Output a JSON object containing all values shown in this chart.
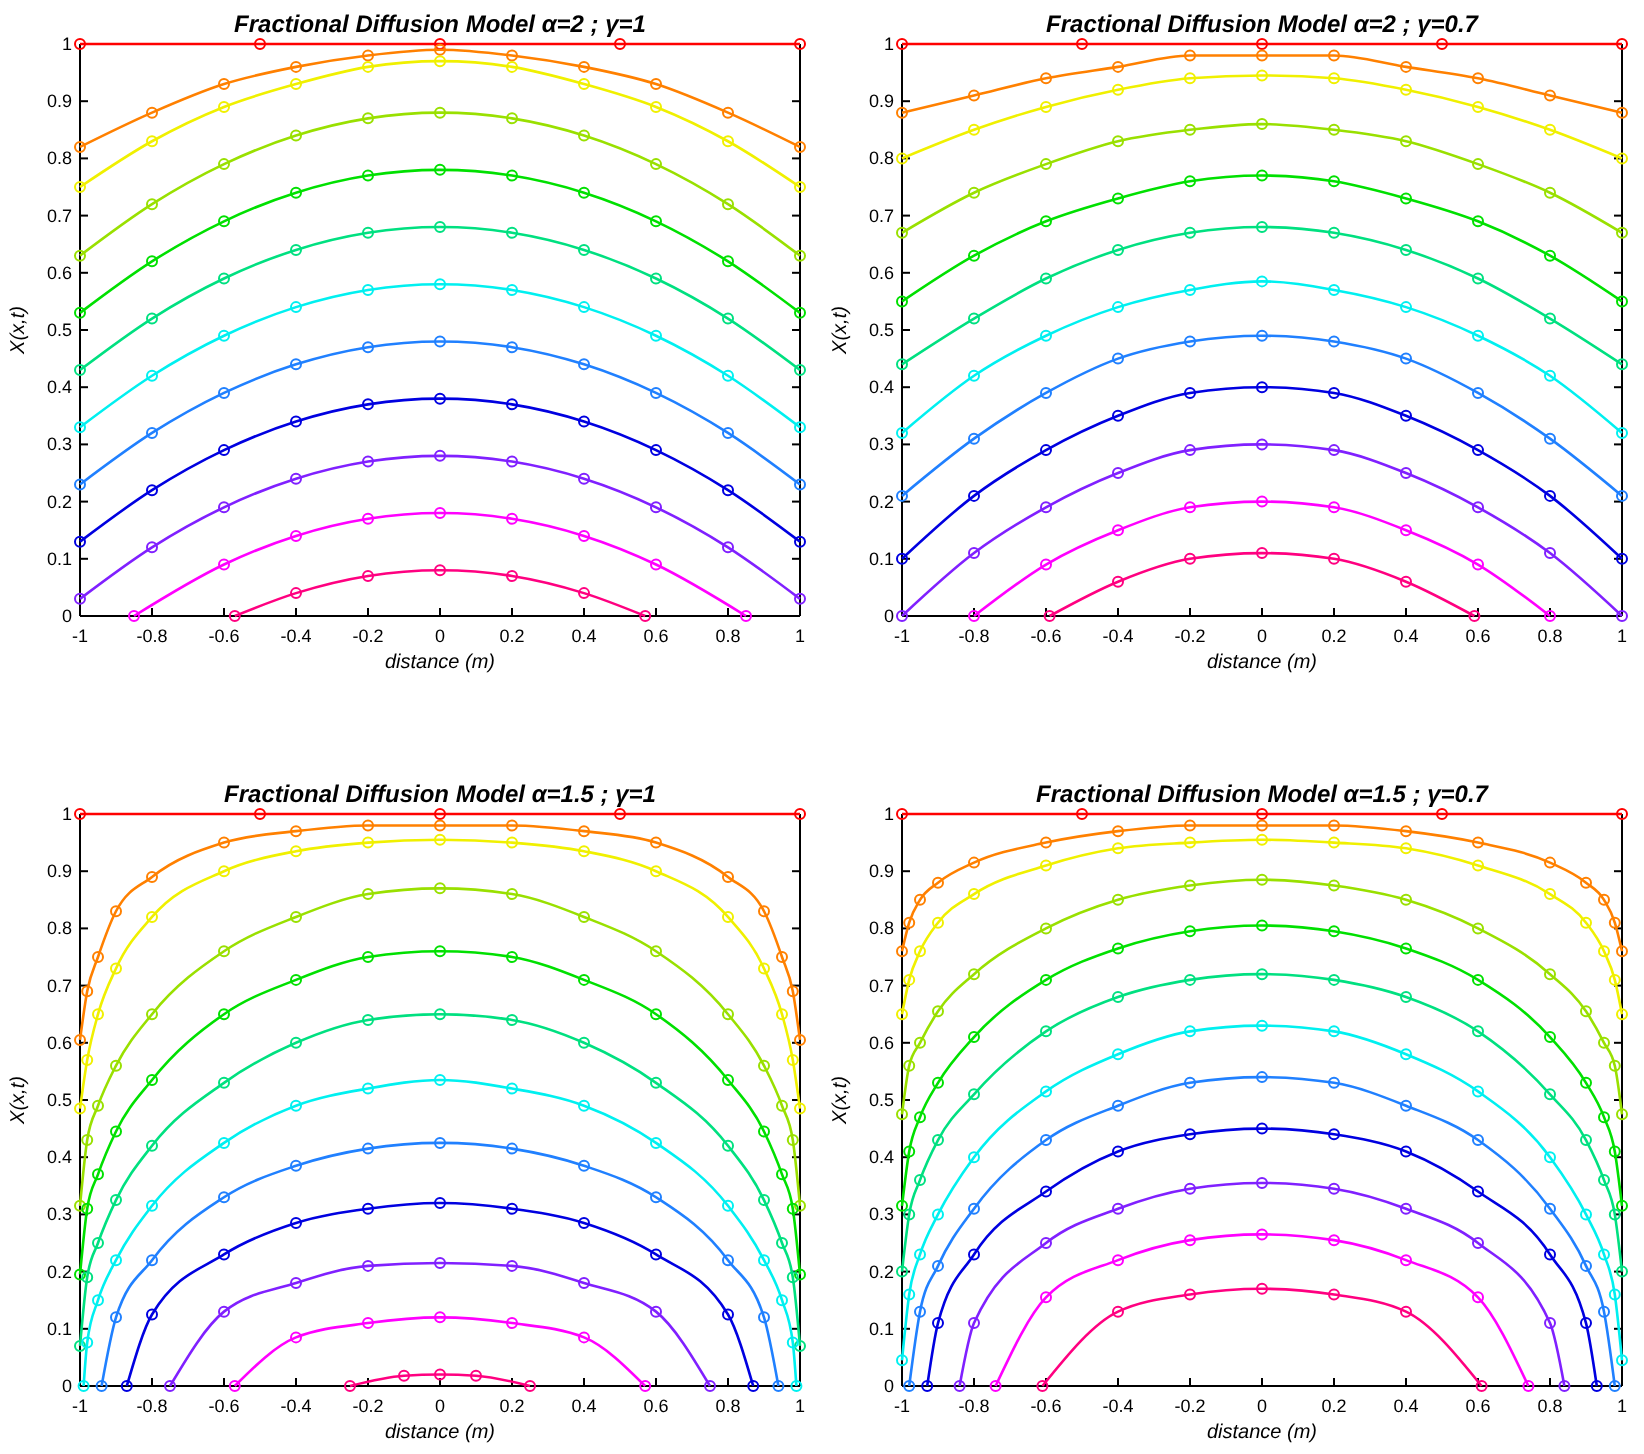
{
  "chart_data": [
    {
      "type": "line",
      "title": "Fractional Diffusion Model α=2 ; γ=1",
      "xlabel": "distance (m)",
      "ylabel": "X(x,t)",
      "xlim": [
        -1,
        1
      ],
      "ylim": [
        0,
        1
      ],
      "xticks": [
        -1,
        -0.8,
        -0.6,
        -0.4,
        -0.2,
        0,
        0.2,
        0.4,
        0.6,
        0.8,
        1
      ],
      "yticks": [
        0,
        0.1,
        0.2,
        0.3,
        0.4,
        0.5,
        0.6,
        0.7,
        0.8,
        0.9,
        1
      ],
      "marker": "circle",
      "line_style": "solid",
      "series": [
        {
          "color": "#ff0000",
          "x": [
            -1,
            -0.5,
            0,
            0.5,
            1
          ],
          "values": [
            1,
            1,
            1,
            1,
            1
          ]
        },
        {
          "color": "#ff8000",
          "x": [
            -1,
            -0.8,
            -0.6,
            -0.4,
            -0.2,
            0,
            0.2,
            0.4,
            0.6,
            0.8,
            1
          ],
          "values": [
            0.82,
            0.88,
            0.93,
            0.96,
            0.98,
            0.99,
            0.98,
            0.96,
            0.93,
            0.88,
            0.82
          ]
        },
        {
          "color": "#f0f000",
          "x": [
            -1,
            -0.8,
            -0.6,
            -0.4,
            -0.2,
            0,
            0.2,
            0.4,
            0.6,
            0.8,
            1
          ],
          "values": [
            0.75,
            0.83,
            0.89,
            0.93,
            0.96,
            0.97,
            0.96,
            0.93,
            0.89,
            0.83,
            0.75
          ]
        },
        {
          "color": "#99e000",
          "x": [
            -1,
            -0.8,
            -0.6,
            -0.4,
            -0.2,
            0,
            0.2,
            0.4,
            0.6,
            0.8,
            1
          ],
          "values": [
            0.63,
            0.72,
            0.79,
            0.84,
            0.87,
            0.88,
            0.87,
            0.84,
            0.79,
            0.72,
            0.63
          ]
        },
        {
          "color": "#00e000",
          "x": [
            -1,
            -0.8,
            -0.6,
            -0.4,
            -0.2,
            0,
            0.2,
            0.4,
            0.6,
            0.8,
            1
          ],
          "values": [
            0.53,
            0.62,
            0.69,
            0.74,
            0.77,
            0.78,
            0.77,
            0.74,
            0.69,
            0.62,
            0.53
          ]
        },
        {
          "color": "#00e080",
          "x": [
            -1,
            -0.8,
            -0.6,
            -0.4,
            -0.2,
            0,
            0.2,
            0.4,
            0.6,
            0.8,
            1
          ],
          "values": [
            0.43,
            0.52,
            0.59,
            0.64,
            0.67,
            0.68,
            0.67,
            0.64,
            0.59,
            0.52,
            0.43
          ]
        },
        {
          "color": "#00f0f0",
          "x": [
            -1,
            -0.8,
            -0.6,
            -0.4,
            -0.2,
            0,
            0.2,
            0.4,
            0.6,
            0.8,
            1
          ],
          "values": [
            0.33,
            0.42,
            0.49,
            0.54,
            0.57,
            0.58,
            0.57,
            0.54,
            0.49,
            0.42,
            0.33
          ]
        },
        {
          "color": "#2080ff",
          "x": [
            -1,
            -0.8,
            -0.6,
            -0.4,
            -0.2,
            0,
            0.2,
            0.4,
            0.6,
            0.8,
            1
          ],
          "values": [
            0.23,
            0.32,
            0.39,
            0.44,
            0.47,
            0.48,
            0.47,
            0.44,
            0.39,
            0.32,
            0.23
          ]
        },
        {
          "color": "#0000e0",
          "x": [
            -1,
            -0.8,
            -0.6,
            -0.4,
            -0.2,
            0,
            0.2,
            0.4,
            0.6,
            0.8,
            1
          ],
          "values": [
            0.13,
            0.22,
            0.29,
            0.34,
            0.37,
            0.38,
            0.37,
            0.34,
            0.29,
            0.22,
            0.13
          ]
        },
        {
          "color": "#8020ff",
          "x": [
            -1,
            -0.8,
            -0.6,
            -0.4,
            -0.2,
            0,
            0.2,
            0.4,
            0.6,
            0.8,
            1
          ],
          "values": [
            0.03,
            0.12,
            0.19,
            0.24,
            0.27,
            0.28,
            0.27,
            0.24,
            0.19,
            0.12,
            0.03
          ]
        },
        {
          "color": "#ff00ff",
          "x": [
            -0.85,
            -0.6,
            -0.4,
            -0.2,
            0,
            0.2,
            0.4,
            0.6,
            0.85
          ],
          "values": [
            0,
            0.09,
            0.14,
            0.17,
            0.18,
            0.17,
            0.14,
            0.09,
            0
          ]
        },
        {
          "color": "#ff0080",
          "x": [
            -0.57,
            -0.4,
            -0.2,
            0,
            0.2,
            0.4,
            0.57
          ],
          "values": [
            0,
            0.04,
            0.07,
            0.08,
            0.07,
            0.04,
            0
          ]
        }
      ]
    },
    {
      "type": "line",
      "title": "Fractional Diffusion Model α=2 ; γ=0.7",
      "xlabel": "distance (m)",
      "ylabel": "X(x,t)",
      "xlim": [
        -1,
        1
      ],
      "ylim": [
        0,
        1
      ],
      "xticks": [
        -1,
        -0.8,
        -0.6,
        -0.4,
        -0.2,
        0,
        0.2,
        0.4,
        0.6,
        0.8,
        1
      ],
      "yticks": [
        0,
        0.1,
        0.2,
        0.3,
        0.4,
        0.5,
        0.6,
        0.7,
        0.8,
        0.9,
        1
      ],
      "marker": "circle",
      "line_style": "solid",
      "series": [
        {
          "color": "#ff0000",
          "x": [
            -1,
            -0.5,
            0,
            0.5,
            1
          ],
          "values": [
            1,
            1,
            1,
            1,
            1
          ]
        },
        {
          "color": "#ff8000",
          "x": [
            -1,
            -0.8,
            -0.6,
            -0.4,
            -0.2,
            0,
            0.2,
            0.4,
            0.6,
            0.8,
            1
          ],
          "values": [
            0.88,
            0.91,
            0.94,
            0.96,
            0.98,
            0.98,
            0.98,
            0.96,
            0.94,
            0.91,
            0.88
          ]
        },
        {
          "color": "#f0f000",
          "x": [
            -1,
            -0.8,
            -0.6,
            -0.4,
            -0.2,
            0,
            0.2,
            0.4,
            0.6,
            0.8,
            1
          ],
          "values": [
            0.8,
            0.85,
            0.89,
            0.92,
            0.94,
            0.945,
            0.94,
            0.92,
            0.89,
            0.85,
            0.8
          ]
        },
        {
          "color": "#99e000",
          "x": [
            -1,
            -0.8,
            -0.6,
            -0.4,
            -0.2,
            0,
            0.2,
            0.4,
            0.6,
            0.8,
            1
          ],
          "values": [
            0.67,
            0.74,
            0.79,
            0.83,
            0.85,
            0.86,
            0.85,
            0.83,
            0.79,
            0.74,
            0.67
          ]
        },
        {
          "color": "#00e000",
          "x": [
            -1,
            -0.8,
            -0.6,
            -0.4,
            -0.2,
            0,
            0.2,
            0.4,
            0.6,
            0.8,
            1
          ],
          "values": [
            0.55,
            0.63,
            0.69,
            0.73,
            0.76,
            0.77,
            0.76,
            0.73,
            0.69,
            0.63,
            0.55
          ]
        },
        {
          "color": "#00e080",
          "x": [
            -1,
            -0.8,
            -0.6,
            -0.4,
            -0.2,
            0,
            0.2,
            0.4,
            0.6,
            0.8,
            1
          ],
          "values": [
            0.44,
            0.52,
            0.59,
            0.64,
            0.67,
            0.68,
            0.67,
            0.64,
            0.59,
            0.52,
            0.44
          ]
        },
        {
          "color": "#00f0f0",
          "x": [
            -1,
            -0.8,
            -0.6,
            -0.4,
            -0.2,
            0,
            0.2,
            0.4,
            0.6,
            0.8,
            1
          ],
          "values": [
            0.32,
            0.42,
            0.49,
            0.54,
            0.57,
            0.585,
            0.57,
            0.54,
            0.49,
            0.42,
            0.32
          ]
        },
        {
          "color": "#2080ff",
          "x": [
            -1,
            -0.8,
            -0.6,
            -0.4,
            -0.2,
            0,
            0.2,
            0.4,
            0.6,
            0.8,
            1
          ],
          "values": [
            0.21,
            0.31,
            0.39,
            0.45,
            0.48,
            0.49,
            0.48,
            0.45,
            0.39,
            0.31,
            0.21
          ]
        },
        {
          "color": "#0000e0",
          "x": [
            -1,
            -0.8,
            -0.6,
            -0.4,
            -0.2,
            0,
            0.2,
            0.4,
            0.6,
            0.8,
            1
          ],
          "values": [
            0.1,
            0.21,
            0.29,
            0.35,
            0.39,
            0.4,
            0.39,
            0.35,
            0.29,
            0.21,
            0.1
          ]
        },
        {
          "color": "#8020ff",
          "x": [
            -1,
            -0.8,
            -0.6,
            -0.4,
            -0.2,
            0,
            0.2,
            0.4,
            0.6,
            0.8,
            1
          ],
          "values": [
            0,
            0.11,
            0.19,
            0.25,
            0.29,
            0.3,
            0.29,
            0.25,
            0.19,
            0.11,
            0
          ]
        },
        {
          "color": "#ff00ff",
          "x": [
            -0.8,
            -0.6,
            -0.4,
            -0.2,
            0,
            0.2,
            0.4,
            0.6,
            0.8
          ],
          "values": [
            0,
            0.09,
            0.15,
            0.19,
            0.2,
            0.19,
            0.15,
            0.09,
            0
          ]
        },
        {
          "color": "#ff0080",
          "x": [
            -0.59,
            -0.4,
            -0.2,
            0,
            0.2,
            0.4,
            0.59
          ],
          "values": [
            0,
            0.06,
            0.1,
            0.11,
            0.1,
            0.06,
            0
          ]
        }
      ]
    },
    {
      "type": "line",
      "title": "Fractional Diffusion Model α=1.5 ; γ=1",
      "xlabel": "distance (m)",
      "ylabel": "X(x,t)",
      "xlim": [
        -1,
        1
      ],
      "ylim": [
        0,
        1
      ],
      "xticks": [
        -1,
        -0.8,
        -0.6,
        -0.4,
        -0.2,
        0,
        0.2,
        0.4,
        0.6,
        0.8,
        1
      ],
      "yticks": [
        0,
        0.1,
        0.2,
        0.3,
        0.4,
        0.5,
        0.6,
        0.7,
        0.8,
        0.9,
        1
      ],
      "marker": "circle",
      "line_style": "solid",
      "series": [
        {
          "color": "#ff0000",
          "x": [
            -1,
            -0.5,
            0,
            0.5,
            1
          ],
          "values": [
            1,
            1,
            1,
            1,
            1
          ]
        },
        {
          "color": "#ff8000",
          "x": [
            -1,
            -0.98,
            -0.95,
            -0.9,
            -0.8,
            -0.6,
            -0.4,
            -0.2,
            0,
            0.2,
            0.4,
            0.6,
            0.8,
            0.9,
            0.95,
            0.98,
            1
          ],
          "values": [
            0.605,
            0.69,
            0.75,
            0.83,
            0.89,
            0.95,
            0.97,
            0.98,
            0.98,
            0.98,
            0.97,
            0.95,
            0.89,
            0.83,
            0.75,
            0.69,
            0.605
          ]
        },
        {
          "color": "#f0f000",
          "x": [
            -1,
            -0.98,
            -0.95,
            -0.9,
            -0.8,
            -0.6,
            -0.4,
            -0.2,
            0,
            0.2,
            0.4,
            0.6,
            0.8,
            0.9,
            0.95,
            0.98,
            1
          ],
          "values": [
            0.485,
            0.57,
            0.65,
            0.73,
            0.82,
            0.9,
            0.935,
            0.95,
            0.955,
            0.95,
            0.935,
            0.9,
            0.82,
            0.73,
            0.65,
            0.57,
            0.485
          ]
        },
        {
          "color": "#99e000",
          "x": [
            -1,
            -0.98,
            -0.95,
            -0.9,
            -0.8,
            -0.6,
            -0.4,
            -0.2,
            0,
            0.2,
            0.4,
            0.6,
            0.8,
            0.9,
            0.95,
            0.98,
            1
          ],
          "values": [
            0.315,
            0.43,
            0.49,
            0.56,
            0.65,
            0.76,
            0.82,
            0.86,
            0.87,
            0.86,
            0.82,
            0.76,
            0.65,
            0.56,
            0.49,
            0.43,
            0.315
          ]
        },
        {
          "color": "#00e000",
          "x": [
            -1,
            -0.98,
            -0.95,
            -0.9,
            -0.8,
            -0.6,
            -0.4,
            -0.2,
            0,
            0.2,
            0.4,
            0.6,
            0.8,
            0.9,
            0.95,
            0.98,
            1
          ],
          "values": [
            0.195,
            0.31,
            0.37,
            0.445,
            0.535,
            0.65,
            0.71,
            0.75,
            0.76,
            0.75,
            0.71,
            0.65,
            0.535,
            0.445,
            0.37,
            0.31,
            0.195
          ]
        },
        {
          "color": "#00e080",
          "x": [
            -1,
            -0.98,
            -0.95,
            -0.9,
            -0.8,
            -0.6,
            -0.4,
            -0.2,
            0,
            0.2,
            0.4,
            0.6,
            0.8,
            0.9,
            0.95,
            0.98,
            1
          ],
          "values": [
            0.07,
            0.19,
            0.25,
            0.325,
            0.42,
            0.53,
            0.6,
            0.64,
            0.65,
            0.64,
            0.6,
            0.53,
            0.42,
            0.325,
            0.25,
            0.19,
            0.07
          ]
        },
        {
          "color": "#00f0f0",
          "x": [
            -0.99,
            -0.98,
            -0.95,
            -0.9,
            -0.8,
            -0.6,
            -0.4,
            -0.2,
            0,
            0.2,
            0.4,
            0.6,
            0.8,
            0.9,
            0.95,
            0.98,
            0.99
          ],
          "values": [
            0,
            0.076,
            0.15,
            0.22,
            0.315,
            0.425,
            0.49,
            0.52,
            0.535,
            0.52,
            0.49,
            0.425,
            0.315,
            0.22,
            0.15,
            0.076,
            0
          ]
        },
        {
          "color": "#2080ff",
          "x": [
            -0.94,
            -0.9,
            -0.8,
            -0.6,
            -0.4,
            -0.2,
            0,
            0.2,
            0.4,
            0.6,
            0.8,
            0.9,
            0.94
          ],
          "values": [
            0,
            0.12,
            0.22,
            0.33,
            0.385,
            0.415,
            0.425,
            0.415,
            0.385,
            0.33,
            0.22,
            0.12,
            0
          ]
        },
        {
          "color": "#0000e0",
          "x": [
            -0.87,
            -0.8,
            -0.6,
            -0.4,
            -0.2,
            0,
            0.2,
            0.4,
            0.6,
            0.8,
            0.87
          ],
          "values": [
            0,
            0.125,
            0.23,
            0.285,
            0.31,
            0.32,
            0.31,
            0.285,
            0.23,
            0.125,
            0
          ]
        },
        {
          "color": "#8020ff",
          "x": [
            -0.75,
            -0.6,
            -0.4,
            -0.2,
            0,
            0.2,
            0.4,
            0.6,
            0.75
          ],
          "values": [
            0,
            0.13,
            0.18,
            0.21,
            0.215,
            0.21,
            0.18,
            0.13,
            0
          ]
        },
        {
          "color": "#ff00ff",
          "x": [
            -0.57,
            -0.4,
            -0.2,
            0,
            0.2,
            0.4,
            0.57
          ],
          "values": [
            0,
            0.085,
            0.11,
            0.12,
            0.11,
            0.085,
            0
          ]
        },
        {
          "color": "#ff0080",
          "x": [
            -0.25,
            -0.1,
            0,
            0.1,
            0.25
          ],
          "values": [
            0,
            0.018,
            0.02,
            0.018,
            0
          ]
        }
      ]
    },
    {
      "type": "line",
      "title": "Fractional Diffusion Model α=1.5 ; γ=0.7",
      "xlabel": "distance (m)",
      "ylabel": "X(x,t)",
      "xlim": [
        -1,
        1
      ],
      "ylim": [
        0,
        1
      ],
      "xticks": [
        -1,
        -0.8,
        -0.6,
        -0.4,
        -0.2,
        0,
        0.2,
        0.4,
        0.6,
        0.8,
        1
      ],
      "yticks": [
        0,
        0.1,
        0.2,
        0.3,
        0.4,
        0.5,
        0.6,
        0.7,
        0.8,
        0.9,
        1
      ],
      "marker": "circle",
      "line_style": "solid",
      "series": [
        {
          "color": "#ff0000",
          "x": [
            -1,
            -0.5,
            0,
            0.5,
            1
          ],
          "values": [
            1,
            1,
            1,
            1,
            1
          ]
        },
        {
          "color": "#ff8000",
          "x": [
            -1,
            -0.98,
            -0.95,
            -0.9,
            -0.8,
            -0.6,
            -0.4,
            -0.2,
            0,
            0.2,
            0.4,
            0.6,
            0.8,
            0.9,
            0.95,
            0.98,
            1
          ],
          "values": [
            0.76,
            0.81,
            0.85,
            0.88,
            0.915,
            0.95,
            0.97,
            0.98,
            0.98,
            0.98,
            0.97,
            0.95,
            0.915,
            0.88,
            0.85,
            0.81,
            0.76
          ]
        },
        {
          "color": "#f0f000",
          "x": [
            -1,
            -0.98,
            -0.95,
            -0.9,
            -0.8,
            -0.6,
            -0.4,
            -0.2,
            0,
            0.2,
            0.4,
            0.6,
            0.8,
            0.9,
            0.95,
            0.98,
            1
          ],
          "values": [
            0.65,
            0.71,
            0.76,
            0.81,
            0.86,
            0.91,
            0.94,
            0.95,
            0.955,
            0.95,
            0.94,
            0.91,
            0.86,
            0.81,
            0.76,
            0.71,
            0.65
          ]
        },
        {
          "color": "#99e000",
          "x": [
            -1,
            -0.98,
            -0.95,
            -0.9,
            -0.8,
            -0.6,
            -0.4,
            -0.2,
            0,
            0.2,
            0.4,
            0.6,
            0.8,
            0.9,
            0.95,
            0.98,
            1
          ],
          "values": [
            0.475,
            0.56,
            0.6,
            0.655,
            0.72,
            0.8,
            0.85,
            0.875,
            0.885,
            0.875,
            0.85,
            0.8,
            0.72,
            0.655,
            0.6,
            0.56,
            0.475
          ]
        },
        {
          "color": "#00e000",
          "x": [
            -1,
            -0.98,
            -0.95,
            -0.9,
            -0.8,
            -0.6,
            -0.4,
            -0.2,
            0,
            0.2,
            0.4,
            0.6,
            0.8,
            0.9,
            0.95,
            0.98,
            1
          ],
          "values": [
            0.315,
            0.41,
            0.47,
            0.53,
            0.61,
            0.71,
            0.765,
            0.795,
            0.805,
            0.795,
            0.765,
            0.71,
            0.61,
            0.53,
            0.47,
            0.41,
            0.315
          ]
        },
        {
          "color": "#00e080",
          "x": [
            -1,
            -0.98,
            -0.95,
            -0.9,
            -0.8,
            -0.6,
            -0.4,
            -0.2,
            0,
            0.2,
            0.4,
            0.6,
            0.8,
            0.9,
            0.95,
            0.98,
            1
          ],
          "values": [
            0.2,
            0.3,
            0.36,
            0.43,
            0.51,
            0.62,
            0.68,
            0.71,
            0.72,
            0.71,
            0.68,
            0.62,
            0.51,
            0.43,
            0.36,
            0.3,
            0.2
          ]
        },
        {
          "color": "#00f0f0",
          "x": [
            -1,
            -0.98,
            -0.95,
            -0.9,
            -0.8,
            -0.6,
            -0.4,
            -0.2,
            0,
            0.2,
            0.4,
            0.6,
            0.8,
            0.9,
            0.95,
            0.98,
            1
          ],
          "values": [
            0.045,
            0.16,
            0.23,
            0.3,
            0.4,
            0.515,
            0.58,
            0.62,
            0.63,
            0.62,
            0.58,
            0.515,
            0.4,
            0.3,
            0.23,
            0.16,
            0.045
          ]
        },
        {
          "color": "#2080ff",
          "x": [
            -0.98,
            -0.95,
            -0.9,
            -0.8,
            -0.6,
            -0.4,
            -0.2,
            0,
            0.2,
            0.4,
            0.6,
            0.8,
            0.9,
            0.95,
            0.98
          ],
          "values": [
            0,
            0.13,
            0.21,
            0.31,
            0.43,
            0.49,
            0.53,
            0.54,
            0.53,
            0.49,
            0.43,
            0.31,
            0.21,
            0.13,
            0
          ]
        },
        {
          "color": "#0000e0",
          "x": [
            -0.93,
            -0.9,
            -0.8,
            -0.6,
            -0.4,
            -0.2,
            0,
            0.2,
            0.4,
            0.6,
            0.8,
            0.9,
            0.93
          ],
          "values": [
            0,
            0.11,
            0.23,
            0.34,
            0.41,
            0.44,
            0.45,
            0.44,
            0.41,
            0.34,
            0.23,
            0.11,
            0
          ]
        },
        {
          "color": "#8020ff",
          "x": [
            -0.84,
            -0.8,
            -0.6,
            -0.4,
            -0.2,
            0,
            0.2,
            0.4,
            0.6,
            0.8,
            0.84
          ],
          "values": [
            0,
            0.11,
            0.25,
            0.31,
            0.345,
            0.355,
            0.345,
            0.31,
            0.25,
            0.11,
            0
          ]
        },
        {
          "color": "#ff00ff",
          "x": [
            -0.74,
            -0.6,
            -0.4,
            -0.2,
            0,
            0.2,
            0.4,
            0.6,
            0.74
          ],
          "values": [
            0,
            0.155,
            0.22,
            0.255,
            0.265,
            0.255,
            0.22,
            0.155,
            0
          ]
        },
        {
          "color": "#ff0080",
          "x": [
            -0.61,
            -0.4,
            -0.2,
            0,
            0.2,
            0.4,
            0.61
          ],
          "values": [
            0,
            0.13,
            0.16,
            0.17,
            0.16,
            0.13,
            0
          ]
        }
      ]
    }
  ]
}
